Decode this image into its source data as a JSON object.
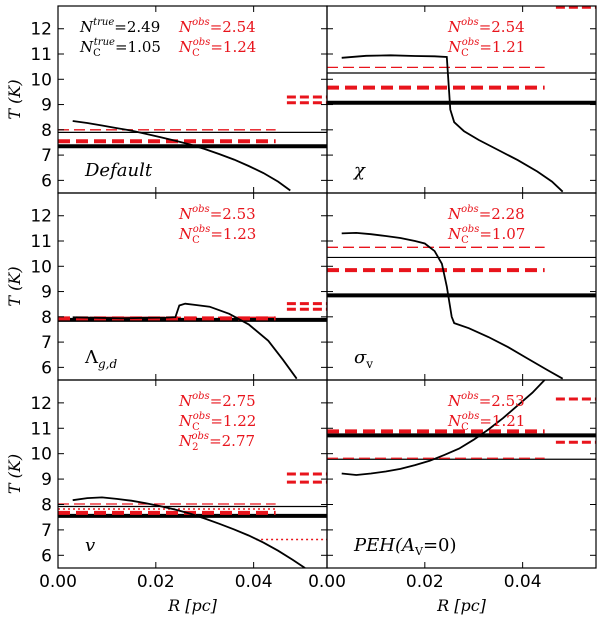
{
  "chart_data": {
    "type": "line",
    "layout": "3x2 grid of panels sharing axes",
    "xlabel": "R [pc]",
    "ylabel": "T (K)",
    "xlim": [
      0.0,
      0.055
    ],
    "ylim": [
      5.5,
      12.9
    ],
    "xticks": [
      0.0,
      0.02,
      0.04
    ],
    "xtick_labels": [
      "0.00",
      "0.02",
      "0.04"
    ],
    "yticks": [
      6,
      7,
      8,
      9,
      10,
      11,
      12
    ],
    "ytick_labels": [
      "6",
      "7",
      "8",
      "9",
      "10",
      "11",
      "12"
    ],
    "colors": {
      "model": "#000000",
      "obs": "#e8141c"
    },
    "panels": [
      {
        "id": "default",
        "label": "Default",
        "annotations": [
          {
            "main": "N",
            "sup": "true",
            "sub": "",
            "value": "=2.49",
            "color": "#000000",
            "col": "left",
            "row": 0
          },
          {
            "main": "N",
            "sup": "true",
            "sub": "C",
            "value": "=1.05",
            "color": "#000000",
            "col": "left",
            "row": 1
          },
          {
            "main": "N",
            "sup": "obs",
            "sub": "",
            "value": "=2.54",
            "color": "#e8141c",
            "col": "right",
            "row": 0
          },
          {
            "main": "N",
            "sup": "obs",
            "sub": "C",
            "value": "=1.24",
            "color": "#e8141c",
            "col": "right",
            "row": 1
          }
        ],
        "curve": {
          "x": [
            0.003,
            0.006,
            0.009,
            0.012,
            0.015,
            0.018,
            0.021,
            0.024,
            0.027,
            0.03,
            0.033,
            0.036,
            0.039,
            0.042,
            0.045,
            0.0475
          ],
          "y": [
            8.35,
            8.27,
            8.17,
            8.07,
            7.97,
            7.84,
            7.71,
            7.57,
            7.42,
            7.24,
            7.04,
            6.82,
            6.57,
            6.29,
            5.95,
            5.6
          ]
        },
        "hlines": [
          {
            "y": 7.9,
            "style": "thin-solid",
            "color": "#000000"
          },
          {
            "y": 7.35,
            "style": "thick-solid",
            "color": "#000000"
          },
          {
            "y": 8.0,
            "style": "thin-dashed",
            "color": "#e8141c"
          },
          {
            "y": 7.55,
            "style": "thick-dashed",
            "color": "#e8141c"
          },
          {
            "y": 9.3,
            "style": "short-dashed",
            "color": "#e8141c"
          },
          {
            "y": 9.07,
            "style": "short-dashed",
            "color": "#e8141c"
          }
        ]
      },
      {
        "id": "chi",
        "label": "χ",
        "annotations": [
          {
            "main": "N",
            "sup": "obs",
            "sub": "",
            "value": "=2.54",
            "color": "#e8141c",
            "col": "right",
            "row": 0
          },
          {
            "main": "N",
            "sup": "obs",
            "sub": "C",
            "value": "=1.21",
            "color": "#e8141c",
            "col": "right",
            "row": 1
          }
        ],
        "curve": {
          "x": [
            0.003,
            0.008,
            0.013,
            0.018,
            0.022,
            0.0245,
            0.0252,
            0.026,
            0.028,
            0.031,
            0.035,
            0.039,
            0.043,
            0.046,
            0.0482
          ],
          "y": [
            10.85,
            10.93,
            10.95,
            10.92,
            10.91,
            10.88,
            8.8,
            8.3,
            7.95,
            7.6,
            7.2,
            6.8,
            6.35,
            5.95,
            5.55
          ]
        },
        "hlines": [
          {
            "y": 10.25,
            "style": "thin-solid",
            "color": "#000000"
          },
          {
            "y": 9.07,
            "style": "thick-solid",
            "color": "#000000"
          },
          {
            "y": 10.47,
            "style": "thin-dashed",
            "color": "#e8141c"
          },
          {
            "y": 9.67,
            "style": "thick-dashed",
            "color": "#e8141c"
          },
          {
            "y": 12.85,
            "style": "short-dashed",
            "color": "#e8141c"
          }
        ]
      },
      {
        "id": "lambda",
        "label": "Λg,d",
        "annotations": [
          {
            "main": "N",
            "sup": "obs",
            "sub": "",
            "value": "=2.53",
            "color": "#e8141c",
            "col": "right",
            "row": 0
          },
          {
            "main": "N",
            "sup": "obs",
            "sub": "C",
            "value": "=1.23",
            "color": "#e8141c",
            "col": "right",
            "row": 1
          }
        ],
        "curve": {
          "x": [
            0.003,
            0.008,
            0.013,
            0.018,
            0.022,
            0.024,
            0.0248,
            0.026,
            0.028,
            0.031,
            0.035,
            0.039,
            0.043,
            0.046,
            0.0488
          ],
          "y": [
            7.98,
            7.96,
            7.94,
            7.96,
            7.97,
            7.99,
            8.45,
            8.52,
            8.47,
            8.4,
            8.12,
            7.7,
            7.05,
            6.3,
            5.55
          ]
        },
        "hlines": [
          {
            "y": 7.92,
            "style": "thin-solid",
            "color": "#000000"
          },
          {
            "y": 7.88,
            "style": "thick-solid",
            "color": "#000000"
          },
          {
            "y": 7.98,
            "style": "thin-dashed",
            "color": "#e8141c"
          },
          {
            "y": 7.94,
            "style": "thick-dashed",
            "color": "#e8141c"
          },
          {
            "y": 8.52,
            "style": "short-dashed",
            "color": "#e8141c"
          },
          {
            "y": 8.3,
            "style": "short-dashed",
            "color": "#e8141c"
          }
        ]
      },
      {
        "id": "sigma",
        "label": "σv",
        "annotations": [
          {
            "main": "N",
            "sup": "obs",
            "sub": "",
            "value": "=2.28",
            "color": "#e8141c",
            "col": "right",
            "row": 0
          },
          {
            "main": "N",
            "sup": "obs",
            "sub": "C",
            "value": "=1.07",
            "color": "#e8141c",
            "col": "right",
            "row": 1
          }
        ],
        "curve": {
          "x": [
            0.003,
            0.006,
            0.009,
            0.012,
            0.015,
            0.018,
            0.02,
            0.022,
            0.0235,
            0.0245,
            0.0255,
            0.026,
            0.029,
            0.033,
            0.037,
            0.041,
            0.045,
            0.0482
          ],
          "y": [
            11.3,
            11.32,
            11.27,
            11.2,
            11.12,
            11.0,
            10.9,
            10.6,
            10.1,
            9.2,
            8.0,
            7.75,
            7.55,
            7.2,
            6.8,
            6.35,
            5.9,
            5.55
          ]
        },
        "hlines": [
          {
            "y": 10.35,
            "style": "thin-solid",
            "color": "#000000"
          },
          {
            "y": 8.85,
            "style": "thick-solid",
            "color": "#000000"
          },
          {
            "y": 10.75,
            "style": "thin-dashed",
            "color": "#e8141c"
          },
          {
            "y": 9.85,
            "style": "thick-dashed",
            "color": "#e8141c"
          }
        ]
      },
      {
        "id": "v",
        "label": "v",
        "annotations": [
          {
            "main": "N",
            "sup": "obs",
            "sub": "",
            "value": "=2.75",
            "color": "#e8141c",
            "col": "right",
            "row": 0
          },
          {
            "main": "N",
            "sup": "obs",
            "sub": "C",
            "value": "=1.22",
            "color": "#e8141c",
            "col": "right",
            "row": 1
          },
          {
            "main": "N",
            "sup": "obs",
            "sub": "2",
            "value": "=2.77",
            "color": "#e8141c",
            "col": "right",
            "row": 2
          }
        ],
        "curve": {
          "x": [
            0.003,
            0.006,
            0.009,
            0.012,
            0.015,
            0.018,
            0.021,
            0.024,
            0.027,
            0.03,
            0.033,
            0.036,
            0.039,
            0.042,
            0.045,
            0.048,
            0.0505
          ],
          "y": [
            8.17,
            8.25,
            8.28,
            8.22,
            8.15,
            8.05,
            7.93,
            7.8,
            7.64,
            7.45,
            7.24,
            7.02,
            6.78,
            6.5,
            6.18,
            5.82,
            5.5
          ]
        },
        "hlines": [
          {
            "y": 7.92,
            "style": "thin-solid",
            "color": "#000000"
          },
          {
            "y": 7.55,
            "style": "thick-solid",
            "color": "#000000"
          },
          {
            "y": 8.02,
            "style": "thin-dashed",
            "color": "#e8141c"
          },
          {
            "y": 7.67,
            "style": "thick-dashed",
            "color": "#e8141c"
          },
          {
            "y": 7.82,
            "style": "dotted",
            "color": "#e8141c"
          },
          {
            "y": 9.2,
            "style": "short-dashed",
            "color": "#e8141c"
          },
          {
            "y": 8.88,
            "style": "short-dashed",
            "color": "#e8141c"
          },
          {
            "y": 6.62,
            "style": "short-dotted",
            "color": "#e8141c"
          }
        ]
      },
      {
        "id": "peh",
        "label": "PEH(AV=0)",
        "annotations": [
          {
            "main": "N",
            "sup": "obs",
            "sub": "",
            "value": "=2.53",
            "color": "#e8141c",
            "col": "right",
            "row": 0
          },
          {
            "main": "N",
            "sup": "obs",
            "sub": "C",
            "value": "=1.21",
            "color": "#e8141c",
            "col": "right",
            "row": 1
          }
        ],
        "curve": {
          "x": [
            0.003,
            0.006,
            0.009,
            0.012,
            0.015,
            0.018,
            0.021,
            0.024,
            0.027,
            0.03,
            0.033,
            0.036,
            0.039,
            0.042,
            0.0445
          ],
          "y": [
            9.22,
            9.16,
            9.22,
            9.3,
            9.4,
            9.55,
            9.72,
            9.95,
            10.2,
            10.55,
            10.95,
            11.4,
            11.9,
            12.4,
            12.9
          ]
        },
        "hlines": [
          {
            "y": 9.78,
            "style": "thin-solid",
            "color": "#000000"
          },
          {
            "y": 10.72,
            "style": "thick-solid",
            "color": "#000000"
          },
          {
            "y": 9.82,
            "style": "thin-dashed",
            "color": "#e8141c"
          },
          {
            "y": 10.88,
            "style": "thick-dashed",
            "color": "#e8141c"
          },
          {
            "y": 12.15,
            "style": "short-dashed",
            "color": "#e8141c"
          },
          {
            "y": 10.45,
            "style": "short-dashed",
            "color": "#e8141c"
          }
        ]
      }
    ]
  }
}
